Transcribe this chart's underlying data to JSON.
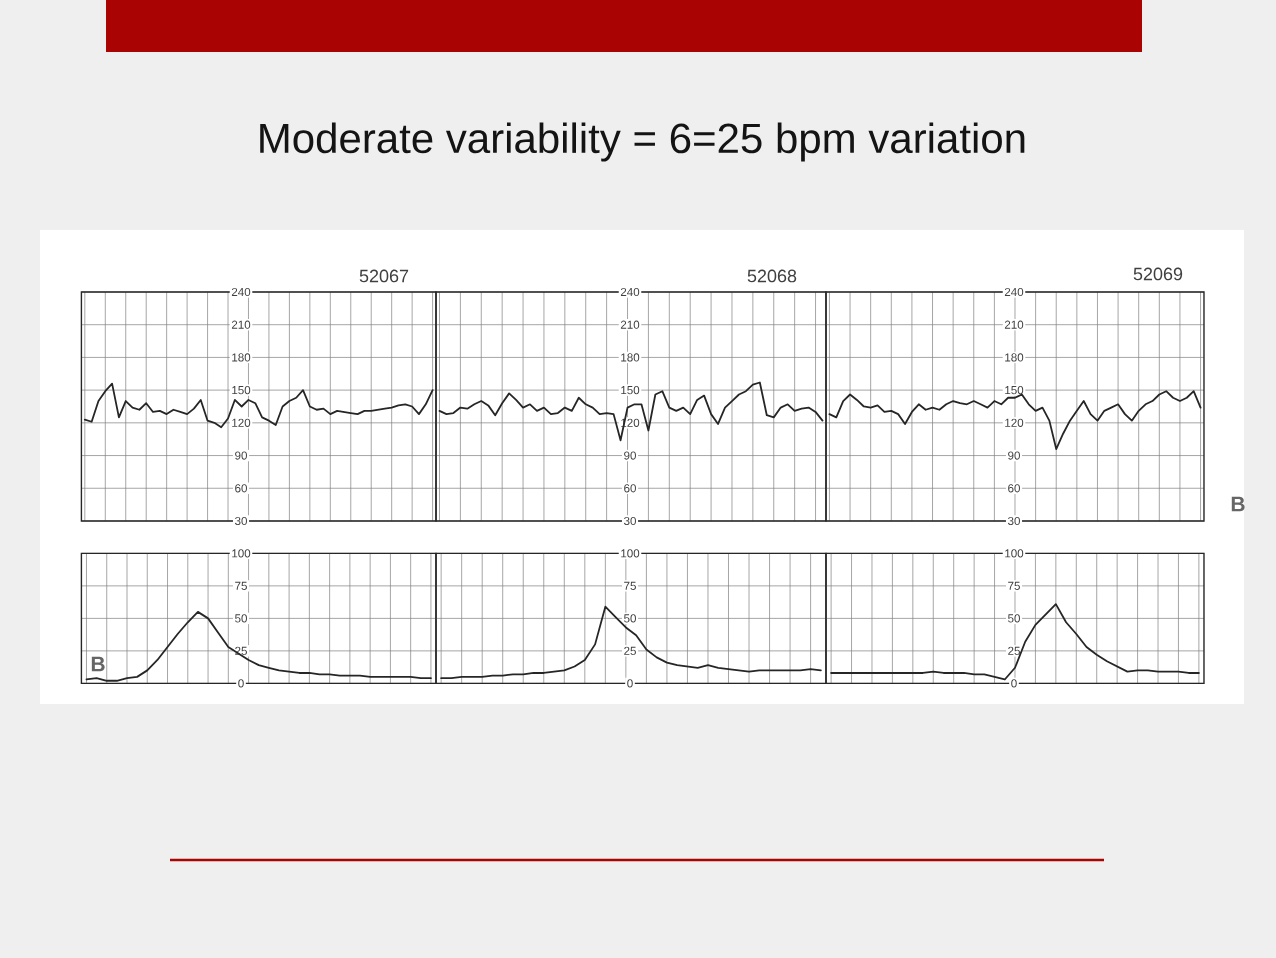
{
  "chart_data": [
    {
      "type": "line",
      "title": "Moderate variability = 6=25 bpm variation",
      "annotations": [
        "52067"
      ],
      "categories": [
        null,
        null,
        null,
        null,
        null,
        null,
        null,
        null,
        null,
        null,
        null,
        null,
        null,
        null,
        null,
        null,
        null,
        null,
        null,
        null,
        null,
        null,
        null,
        null,
        null,
        null,
        null,
        null,
        null,
        null,
        null,
        null,
        null,
        null,
        null,
        null,
        null,
        null,
        null,
        null,
        null,
        null,
        null,
        null,
        null,
        null,
        null,
        null,
        null,
        null,
        null,
        null
      ],
      "series": [
        {
          "color": "#262626",
          "values": [
            123,
            121,
            140,
            149,
            156,
            125,
            140,
            134,
            132,
            138,
            130,
            131,
            128,
            132,
            130,
            128,
            133,
            141,
            122,
            120,
            116,
            124,
            141,
            135,
            141,
            138,
            125,
            122,
            118,
            135,
            140,
            143,
            150,
            135,
            132,
            133,
            128,
            131,
            130,
            129,
            128,
            131,
            131,
            132,
            133,
            134,
            136,
            137,
            135,
            128,
            137,
            150
          ]
        }
      ],
      "ylim": [
        30,
        240
      ],
      "yticks": [
        30,
        60,
        90,
        120,
        150,
        180,
        210,
        240
      ],
      "grid": true
    },
    {
      "type": "line",
      "annotations": [
        "52068"
      ],
      "categories": [
        null,
        null,
        null,
        null,
        null,
        null,
        null,
        null,
        null,
        null,
        null,
        null,
        null,
        null,
        null,
        null,
        null,
        null,
        null,
        null,
        null,
        null,
        null,
        null,
        null,
        null,
        null,
        null,
        null,
        null,
        null,
        null,
        null,
        null,
        null,
        null,
        null,
        null,
        null,
        null,
        null,
        null,
        null,
        null,
        null,
        null,
        null,
        null,
        null,
        null,
        null,
        null,
        null,
        null,
        null,
        null
      ],
      "series": [
        {
          "color": "#262626",
          "values": [
            131,
            128,
            129,
            134,
            133,
            137,
            140,
            136,
            127,
            138,
            147,
            141,
            134,
            137,
            131,
            134,
            128,
            129,
            134,
            131,
            143,
            137,
            134,
            128,
            129,
            128,
            104,
            134,
            137,
            137,
            113,
            146,
            149,
            134,
            131,
            134,
            128,
            141,
            145,
            128,
            119,
            134,
            140,
            146,
            149,
            155,
            157,
            127,
            125,
            134,
            137,
            131,
            133,
            134,
            130,
            122
          ]
        }
      ],
      "ylim": [
        30,
        240
      ],
      "yticks": [
        30,
        60,
        90,
        120,
        150,
        180,
        210,
        240
      ],
      "grid": true
    },
    {
      "type": "line",
      "annotations": [
        "52069",
        "B"
      ],
      "categories": [
        null,
        null,
        null,
        null,
        null,
        null,
        null,
        null,
        null,
        null,
        null,
        null,
        null,
        null,
        null,
        null,
        null,
        null,
        null,
        null,
        null,
        null,
        null,
        null,
        null,
        null,
        null,
        null,
        null,
        null,
        null,
        null,
        null,
        null,
        null,
        null,
        null,
        null,
        null,
        null,
        null,
        null,
        null,
        null,
        null,
        null,
        null,
        null,
        null,
        null,
        null,
        null,
        null,
        null,
        null
      ],
      "series": [
        {
          "color": "#262626",
          "values": [
            128,
            125,
            140,
            146,
            141,
            135,
            134,
            136,
            130,
            131,
            128,
            119,
            130,
            137,
            132,
            134,
            132,
            137,
            140,
            138,
            137,
            140,
            137,
            134,
            140,
            137,
            143,
            143,
            146,
            137,
            131,
            134,
            122,
            96,
            110,
            122,
            131,
            140,
            128,
            122,
            131,
            134,
            137,
            128,
            122,
            131,
            137,
            140,
            146,
            149,
            143,
            140,
            143,
            149,
            134
          ]
        }
      ],
      "ylim": [
        30,
        240
      ],
      "yticks": [
        30,
        60,
        90,
        120,
        150,
        180,
        210,
        240
      ],
      "grid": true
    },
    {
      "type": "line",
      "annotations": [
        "B"
      ],
      "categories": [
        null,
        null,
        null,
        null,
        null,
        null,
        null,
        null,
        null,
        null,
        null,
        null,
        null,
        null,
        null,
        null,
        null,
        null,
        null,
        null,
        null,
        null,
        null,
        null,
        null,
        null,
        null,
        null,
        null,
        null,
        null,
        null,
        null,
        null,
        null
      ],
      "series": [
        {
          "color": "#262626",
          "values": [
            3,
            4,
            2,
            2,
            4,
            5,
            10,
            18,
            28,
            38,
            47,
            55,
            50,
            39,
            28,
            23,
            18,
            14,
            12,
            10,
            9,
            8,
            8,
            7,
            7,
            6,
            6,
            6,
            5,
            5,
            5,
            5,
            5,
            4,
            4
          ]
        }
      ],
      "ylim": [
        0,
        100
      ],
      "yticks": [
        0,
        25,
        50,
        75,
        100
      ],
      "grid": true
    },
    {
      "type": "line",
      "categories": [
        null,
        null,
        null,
        null,
        null,
        null,
        null,
        null,
        null,
        null,
        null,
        null,
        null,
        null,
        null,
        null,
        null,
        null,
        null,
        null,
        null,
        null,
        null,
        null,
        null,
        null,
        null,
        null,
        null,
        null,
        null,
        null,
        null,
        null,
        null,
        null,
        null,
        null
      ],
      "series": [
        {
          "color": "#262626",
          "values": [
            4,
            4,
            5,
            5,
            5,
            6,
            6,
            7,
            7,
            8,
            8,
            9,
            10,
            13,
            18,
            30,
            59,
            51,
            43,
            37,
            26,
            20,
            16,
            14,
            13,
            12,
            14,
            12,
            11,
            10,
            9,
            10,
            10,
            10,
            10,
            10,
            11,
            10
          ]
        }
      ],
      "ylim": [
        0,
        100
      ],
      "yticks": [
        0,
        25,
        50,
        75,
        100
      ],
      "grid": true
    },
    {
      "type": "line",
      "categories": [
        null,
        null,
        null,
        null,
        null,
        null,
        null,
        null,
        null,
        null,
        null,
        null,
        null,
        null,
        null,
        null,
        null,
        null,
        null,
        null,
        null,
        null,
        null,
        null,
        null,
        null,
        null,
        null,
        null,
        null,
        null,
        null,
        null,
        null,
        null,
        null,
        null
      ],
      "series": [
        {
          "color": "#262626",
          "values": [
            8,
            8,
            8,
            8,
            8,
            8,
            8,
            8,
            8,
            8,
            9,
            8,
            8,
            8,
            7,
            7,
            5,
            3,
            12,
            32,
            45,
            53,
            61,
            47,
            38,
            28,
            22,
            17,
            13,
            9,
            10,
            10,
            9,
            9,
            9,
            8,
            8
          ]
        }
      ],
      "ylim": [
        0,
        100
      ],
      "yticks": [
        0,
        25,
        50,
        75,
        100
      ],
      "grid": true
    }
  ]
}
